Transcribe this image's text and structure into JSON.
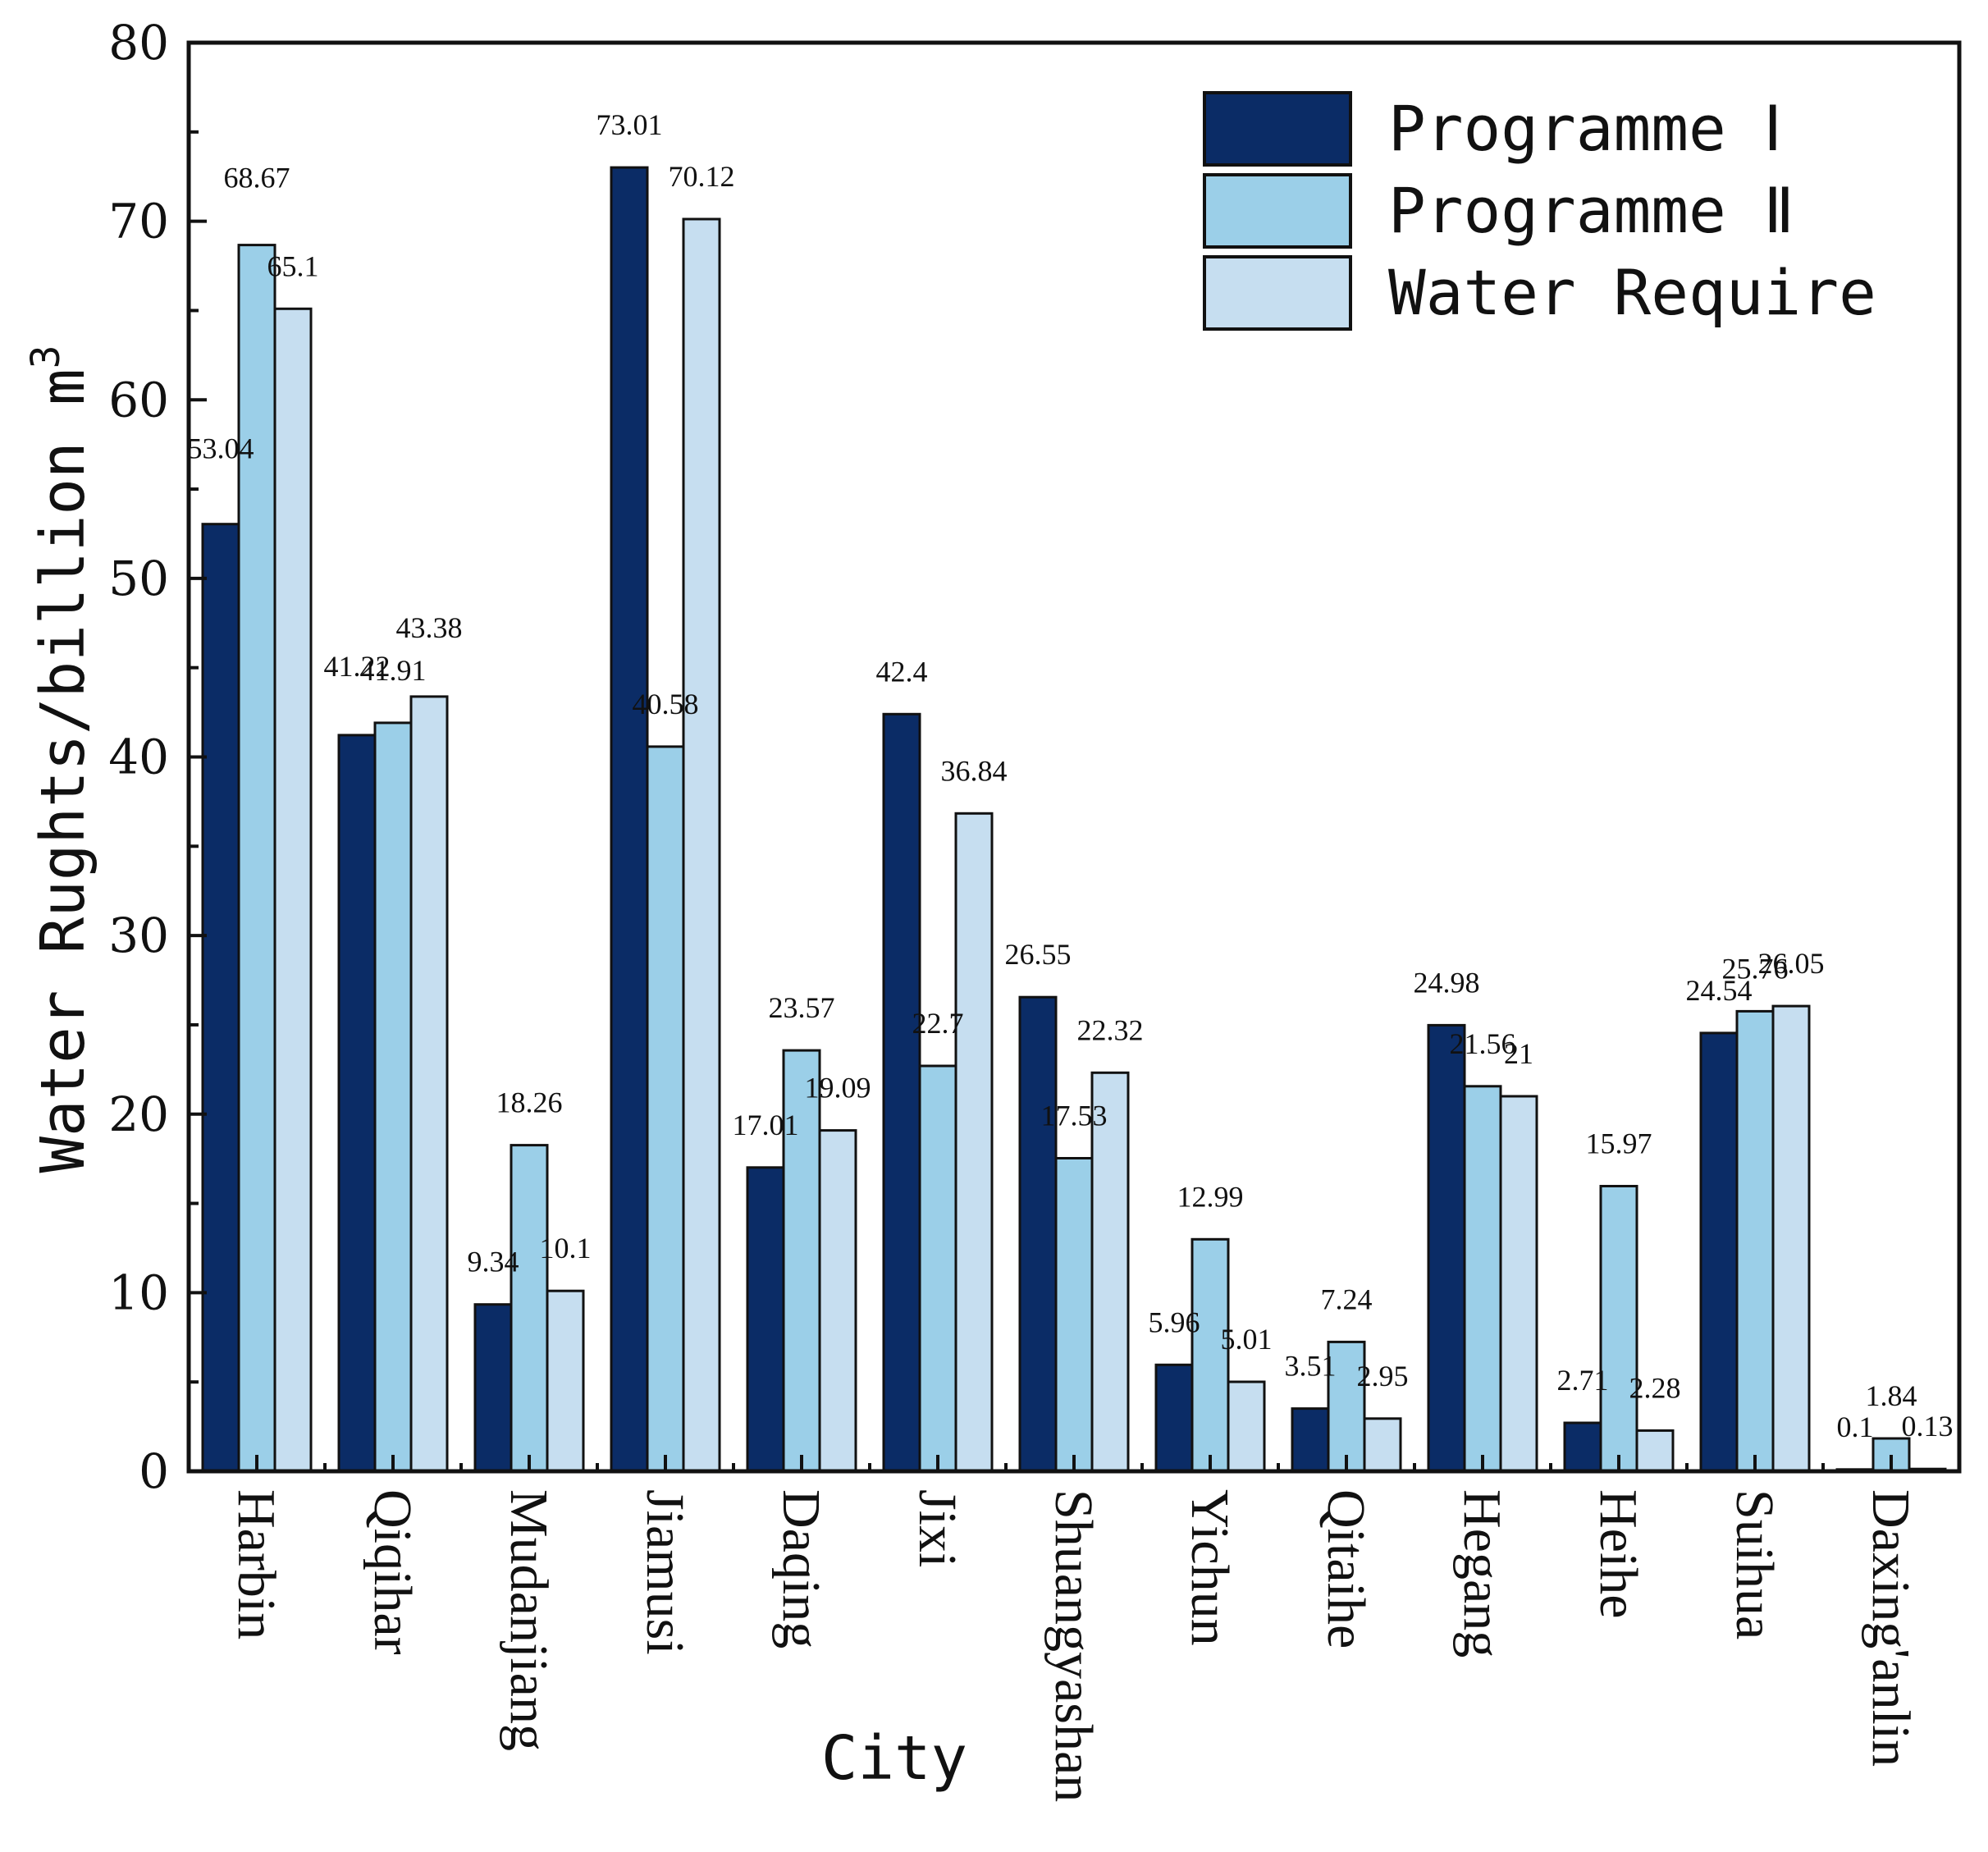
{
  "chart_data": {
    "type": "bar",
    "title": "",
    "xlabel": "City",
    "ylabel": "Water Rughts/billion m",
    "ylabel_superscript": "3",
    "ylim": [
      0,
      80
    ],
    "yticks": [
      0,
      10,
      20,
      30,
      40,
      50,
      60,
      70,
      80
    ],
    "ytick_labels": [
      "0",
      "10",
      "20",
      "30",
      "40",
      "50",
      "60",
      "70",
      "80"
    ],
    "legend_position": "top-right",
    "categories": [
      "Harbin",
      "Qiqihar",
      "Mudanjiang",
      "Jiamusi",
      "Daqing",
      "Jixi",
      "Shuangyashan",
      "Yichun",
      "Qitaihe",
      "Hegang",
      "Heihe",
      "Suihua",
      "Daxing'anlin"
    ],
    "series": [
      {
        "name": "Programme  Ⅰ",
        "color": "#0b2c66",
        "values": [
          53.04,
          41.22,
          9.34,
          73.01,
          17.01,
          42.4,
          26.55,
          5.96,
          3.51,
          24.98,
          2.71,
          24.54,
          0.1
        ],
        "labels": [
          "53.04",
          "41.22",
          "9.34",
          "73.01",
          "17.01",
          "42.4",
          "26.55",
          "5.96",
          "3.51",
          "24.98",
          "2.71",
          "24.54",
          "0.1"
        ]
      },
      {
        "name": "Programme  Ⅱ",
        "color": "#9bcfe8",
        "values": [
          68.67,
          41.91,
          18.26,
          40.58,
          23.57,
          22.7,
          17.53,
          12.99,
          7.24,
          21.56,
          15.97,
          25.76,
          1.84
        ],
        "labels": [
          "68.67",
          "41.91",
          "18.26",
          "40.58",
          "23.57",
          "22.7",
          "17.53",
          "12.99",
          "7.24",
          "21.56",
          "15.97",
          "25.76",
          "1.84"
        ]
      },
      {
        "name": "Water Require",
        "color": "#c6def0",
        "values": [
          65.1,
          43.38,
          10.1,
          70.12,
          19.09,
          36.84,
          22.32,
          5.01,
          2.95,
          21,
          2.28,
          26.05,
          0.13
        ],
        "labels": [
          "65.1",
          "43.38",
          "10.1",
          "70.12",
          "19.09",
          "36.84",
          "22.32",
          "5.01",
          "2.95",
          "21",
          "2.28",
          "26.05",
          "0.13"
        ]
      }
    ]
  }
}
